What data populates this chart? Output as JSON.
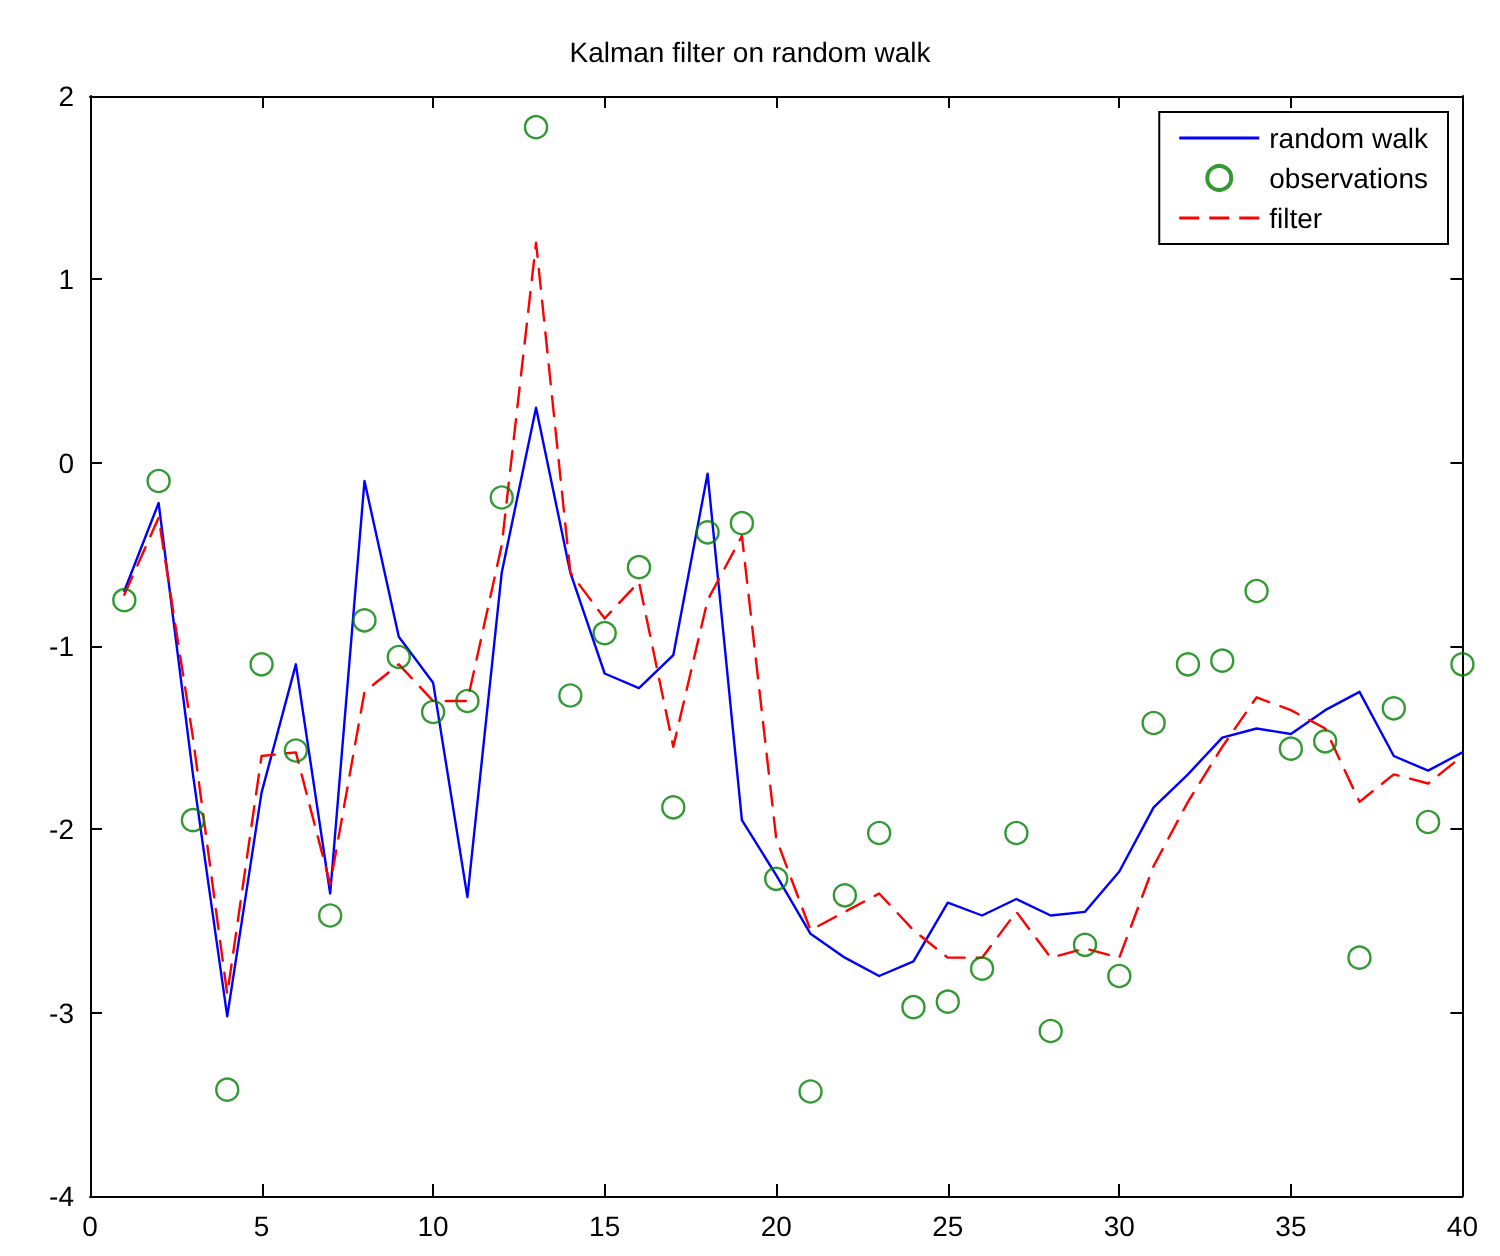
{
  "chart_data": {
    "type": "line",
    "title": "Kalman filter on random walk",
    "x": [
      1,
      2,
      3,
      4,
      5,
      6,
      7,
      8,
      9,
      10,
      11,
      12,
      13,
      14,
      15,
      16,
      17,
      18,
      19,
      20,
      21,
      22,
      23,
      24,
      25,
      26,
      27,
      28,
      29,
      30,
      31,
      32,
      33,
      34,
      35,
      36,
      37,
      38,
      39,
      40
    ],
    "series": [
      {
        "name": "random walk",
        "color": "#0000ff",
        "line_style": "solid",
        "marker": "none",
        "values": [
          -0.7,
          -0.22,
          -1.7,
          -3.02,
          -1.8,
          -1.1,
          -2.35,
          -0.1,
          -0.95,
          -1.2,
          -2.37,
          -0.6,
          0.3,
          -0.6,
          -1.15,
          -1.23,
          -1.05,
          -0.06,
          -1.95,
          -2.25,
          -2.57,
          -2.7,
          -2.8,
          -2.72,
          -2.4,
          -2.47,
          -2.38,
          -2.47,
          -2.45,
          -2.23,
          -1.88,
          -1.7,
          -1.5,
          -1.45,
          -1.48,
          -1.35,
          -1.25,
          -1.6,
          -1.68,
          -1.58
        ]
      },
      {
        "name": "observations",
        "type": "scatter",
        "color": "#008000",
        "marker": "circle",
        "values": [
          -0.75,
          -0.1,
          -1.95,
          -3.42,
          -1.1,
          -1.57,
          -2.47,
          -0.86,
          -1.06,
          -1.36,
          -1.3,
          -0.19,
          1.83,
          -1.27,
          -0.93,
          -0.57,
          -1.88,
          -0.38,
          -0.33,
          -2.27,
          -3.43,
          -2.36,
          -2.02,
          -2.97,
          -2.94,
          -2.76,
          -2.02,
          -3.1,
          -2.63,
          -2.8,
          -1.42,
          -1.1,
          -1.08,
          -0.7,
          -1.56,
          -1.52,
          -2.7,
          -1.34,
          -1.96,
          -1.1
        ]
      },
      {
        "name": "filter",
        "color": "#ff0000",
        "line_style": "dashed",
        "marker": "none",
        "values": [
          -0.72,
          -0.3,
          -1.5,
          -2.9,
          -1.6,
          -1.58,
          -2.3,
          -1.25,
          -1.1,
          -1.3,
          -1.3,
          -0.45,
          1.2,
          -0.6,
          -0.85,
          -0.65,
          -1.55,
          -0.75,
          -0.4,
          -2.05,
          -2.55,
          -2.45,
          -2.35,
          -2.55,
          -2.7,
          -2.7,
          -2.45,
          -2.7,
          -2.65,
          -2.7,
          -2.2,
          -1.85,
          -1.55,
          -1.28,
          -1.35,
          -1.45,
          -1.85,
          -1.7,
          -1.75,
          -1.6
        ]
      }
    ],
    "xlim": [
      0,
      40
    ],
    "xticks": [
      0,
      5,
      10,
      15,
      20,
      25,
      30,
      35,
      40
    ],
    "ylim": [
      -4,
      2
    ],
    "yticks": [
      -4,
      -3,
      -2,
      -1,
      0,
      1,
      2
    ],
    "grid": false,
    "legend": "top right"
  }
}
